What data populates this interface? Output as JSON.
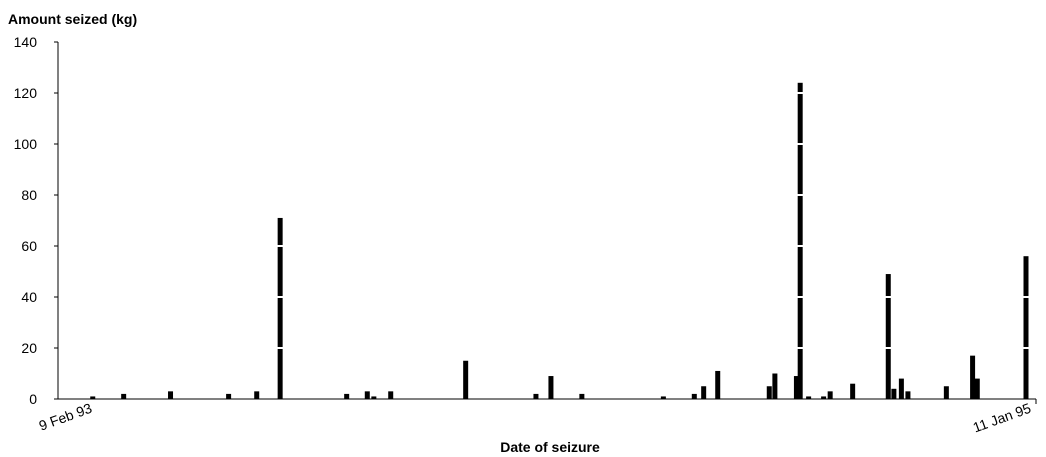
{
  "chart_data": {
    "type": "bar",
    "ylabel": "Amount seized (kg)",
    "xlabel": "Date of seizure",
    "x_tick_labels": [
      "9 Feb 93",
      "11 Jan 95"
    ],
    "ylim": [
      0,
      140
    ],
    "y_ticks": [
      0,
      20,
      40,
      60,
      80,
      100,
      120,
      140
    ],
    "grid": false,
    "colors": {
      "bar": "#000000",
      "background": "#ffffff"
    },
    "series": [
      {
        "values": [
          {
            "x": 0.004,
            "y": 1
          },
          {
            "x": 0.037,
            "y": 2
          },
          {
            "x": 0.087,
            "y": 3
          },
          {
            "x": 0.149,
            "y": 2
          },
          {
            "x": 0.179,
            "y": 3
          },
          {
            "x": 0.204,
            "y": 71
          },
          {
            "x": 0.275,
            "y": 2
          },
          {
            "x": 0.297,
            "y": 3
          },
          {
            "x": 0.304,
            "y": 1
          },
          {
            "x": 0.322,
            "y": 3
          },
          {
            "x": 0.402,
            "y": 15
          },
          {
            "x": 0.477,
            "y": 2
          },
          {
            "x": 0.493,
            "y": 9
          },
          {
            "x": 0.526,
            "y": 2
          },
          {
            "x": 0.613,
            "y": 1
          },
          {
            "x": 0.646,
            "y": 2
          },
          {
            "x": 0.656,
            "y": 5
          },
          {
            "x": 0.671,
            "y": 11
          },
          {
            "x": 0.726,
            "y": 5
          },
          {
            "x": 0.732,
            "y": 10
          },
          {
            "x": 0.755,
            "y": 9
          },
          {
            "x": 0.759,
            "y": 124
          },
          {
            "x": 0.768,
            "y": 1
          },
          {
            "x": 0.784,
            "y": 1
          },
          {
            "x": 0.791,
            "y": 3
          },
          {
            "x": 0.815,
            "y": 6
          },
          {
            "x": 0.853,
            "y": 49
          },
          {
            "x": 0.859,
            "y": 4
          },
          {
            "x": 0.867,
            "y": 8
          },
          {
            "x": 0.874,
            "y": 3
          },
          {
            "x": 0.915,
            "y": 5
          },
          {
            "x": 0.943,
            "y": 17
          },
          {
            "x": 0.948,
            "y": 8
          },
          {
            "x": 1.0,
            "y": 56
          }
        ]
      }
    ]
  }
}
